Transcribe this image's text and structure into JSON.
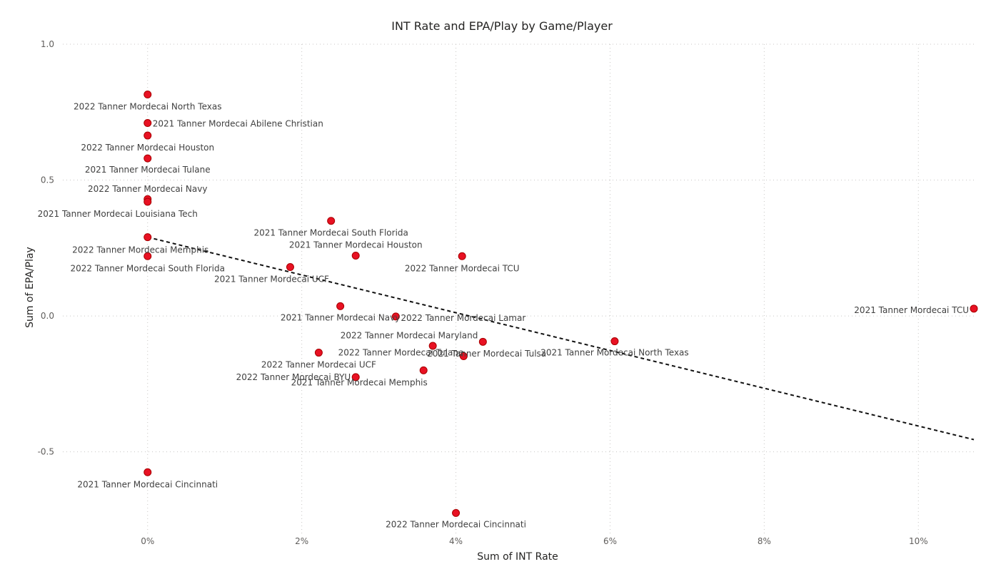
{
  "chart_data": {
    "type": "scatter",
    "title": "INT Rate and EPA/Play by Game/Player",
    "xlabel": "Sum of INT Rate",
    "ylabel": "Sum of EPA/Play",
    "xlim": [
      -0.011,
      0.1072
    ],
    "ylim": [
      -0.8,
      1.0
    ],
    "x_ticks": [
      0,
      0.02,
      0.04,
      0.06,
      0.08,
      0.1
    ],
    "x_tick_labels": [
      "0%",
      "2%",
      "4%",
      "6%",
      "8%",
      "10%"
    ],
    "y_ticks": [
      1.0,
      0.5,
      0.0,
      -0.5
    ],
    "y_tick_labels": [
      "1.0",
      "0.5",
      "0.0",
      "-0.5"
    ],
    "grid": true,
    "trendline": {
      "x": [
        0,
        0.1072
      ],
      "y": [
        0.29,
        -0.455
      ]
    },
    "points": [
      {
        "label": "2022 Tanner Mordecai North Texas",
        "x": 0.0,
        "y": 0.815
      },
      {
        "label": "2021 Tanner Mordecai Abilene Christian",
        "x": 0.0,
        "y": 0.71
      },
      {
        "label": "2022 Tanner Mordecai Houston",
        "x": 0.0,
        "y": 0.664
      },
      {
        "label": "2021 Tanner Mordecai Tulane",
        "x": 0.0,
        "y": 0.58
      },
      {
        "label": "2022 Tanner Mordecai Navy",
        "x": 0.0,
        "y": 0.43
      },
      {
        "label": "2021 Tanner Mordecai Louisiana Tech",
        "x": 0.0,
        "y": 0.42
      },
      {
        "label": "2022 Tanner Mordecai Memphis",
        "x": 0.0,
        "y": 0.29
      },
      {
        "label": "2022 Tanner Mordecai South Florida",
        "x": 0.0,
        "y": 0.22
      },
      {
        "label": "2021 Tanner Mordecai Cincinnati",
        "x": 0.0,
        "y": -0.575
      },
      {
        "label": "2021 Tanner Mordecai South Florida",
        "x": 0.0238,
        "y": 0.35
      },
      {
        "label": "2021 Tanner Mordecai Houston",
        "x": 0.027,
        "y": 0.222
      },
      {
        "label": "2022 Tanner Mordecai TCU",
        "x": 0.0408,
        "y": 0.22
      },
      {
        "label": "2021 Tanner Mordecai UCF",
        "x": 0.0185,
        "y": 0.18
      },
      {
        "label": "2021 Tanner Mordecai Navy",
        "x": 0.025,
        "y": 0.036
      },
      {
        "label": "2022 Tanner Mordecai Lamar",
        "x": 0.0322,
        "y": -0.002
      },
      {
        "label": "2022 Tanner Mordecai Maryland",
        "x": 0.0435,
        "y": -0.095
      },
      {
        "label": "2021 Tanner Mordecai Tulsa",
        "x": 0.037,
        "y": -0.11
      },
      {
        "label": "2021 Tanner Mordecai North Texas",
        "x": 0.0606,
        "y": -0.093
      },
      {
        "label": "2021 Tanner Mordecai TCU",
        "x": 0.1072,
        "y": 0.027
      },
      {
        "label": "2022 Tanner Mordecai UCF",
        "x": 0.0222,
        "y": -0.135
      },
      {
        "label": "2022 Tanner Mordecai Tulane",
        "x": 0.041,
        "y": -0.148
      },
      {
        "label": "2022 Tanner Mordecai BYU",
        "x": 0.027,
        "y": -0.225
      },
      {
        "label": "2021 Tanner Mordecai Memphis",
        "x": 0.0358,
        "y": -0.2
      },
      {
        "label": "2022 Tanner Mordecai Cincinnati",
        "x": 0.04,
        "y": -0.725
      }
    ]
  }
}
